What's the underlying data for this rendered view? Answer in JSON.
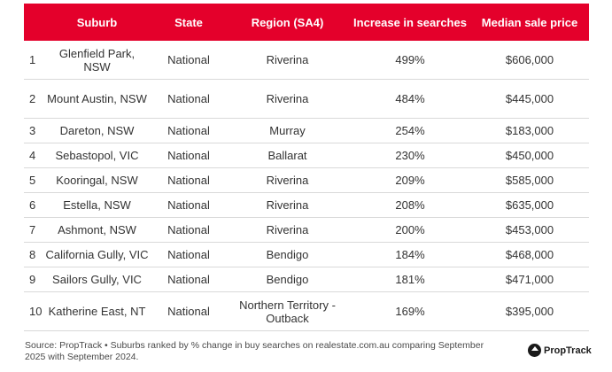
{
  "header": {
    "suburb": "Suburb",
    "state": "State",
    "region": "Region (SA4)",
    "increase": "Increase in searches",
    "price": "Median sale price"
  },
  "rows": [
    {
      "rank": "1",
      "suburb": "Glenfield Park, NSW",
      "state": "National",
      "region": "Riverina",
      "increase": "499%",
      "price": "$606,000"
    },
    {
      "rank": "2",
      "suburb": "Mount Austin, NSW",
      "state": "National",
      "region": "Riverina",
      "increase": "484%",
      "price": "$445,000"
    },
    {
      "rank": "3",
      "suburb": "Dareton, NSW",
      "state": "National",
      "region": "Murray",
      "increase": "254%",
      "price": "$183,000"
    },
    {
      "rank": "4",
      "suburb": "Sebastopol, VIC",
      "state": "National",
      "region": "Ballarat",
      "increase": "230%",
      "price": "$450,000"
    },
    {
      "rank": "5",
      "suburb": "Kooringal, NSW",
      "state": "National",
      "region": "Riverina",
      "increase": "209%",
      "price": "$585,000"
    },
    {
      "rank": "6",
      "suburb": "Estella, NSW",
      "state": "National",
      "region": "Riverina",
      "increase": "208%",
      "price": "$635,000"
    },
    {
      "rank": "7",
      "suburb": "Ashmont, NSW",
      "state": "National",
      "region": "Riverina",
      "increase": "200%",
      "price": "$453,000"
    },
    {
      "rank": "8",
      "suburb": "California Gully, VIC",
      "state": "National",
      "region": "Bendigo",
      "increase": "184%",
      "price": "$468,000"
    },
    {
      "rank": "9",
      "suburb": "Sailors Gully, VIC",
      "state": "National",
      "region": "Bendigo",
      "increase": "181%",
      "price": "$471,000"
    },
    {
      "rank": "10",
      "suburb": "Katherine East, NT",
      "state": "National",
      "region": "Northern Territory - Outback",
      "increase": "169%",
      "price": "$395,000"
    }
  ],
  "footer": {
    "source": "Source: PropTrack • Suburbs ranked by % change in buy searches on realestate.com.au comparing September 2025 with September 2024.",
    "logo_text": "PropTrack"
  },
  "colors": {
    "header_bg": "#e4002b",
    "header_text": "#ffffff"
  },
  "icons": {
    "logo": "proptrack-logo-icon"
  }
}
